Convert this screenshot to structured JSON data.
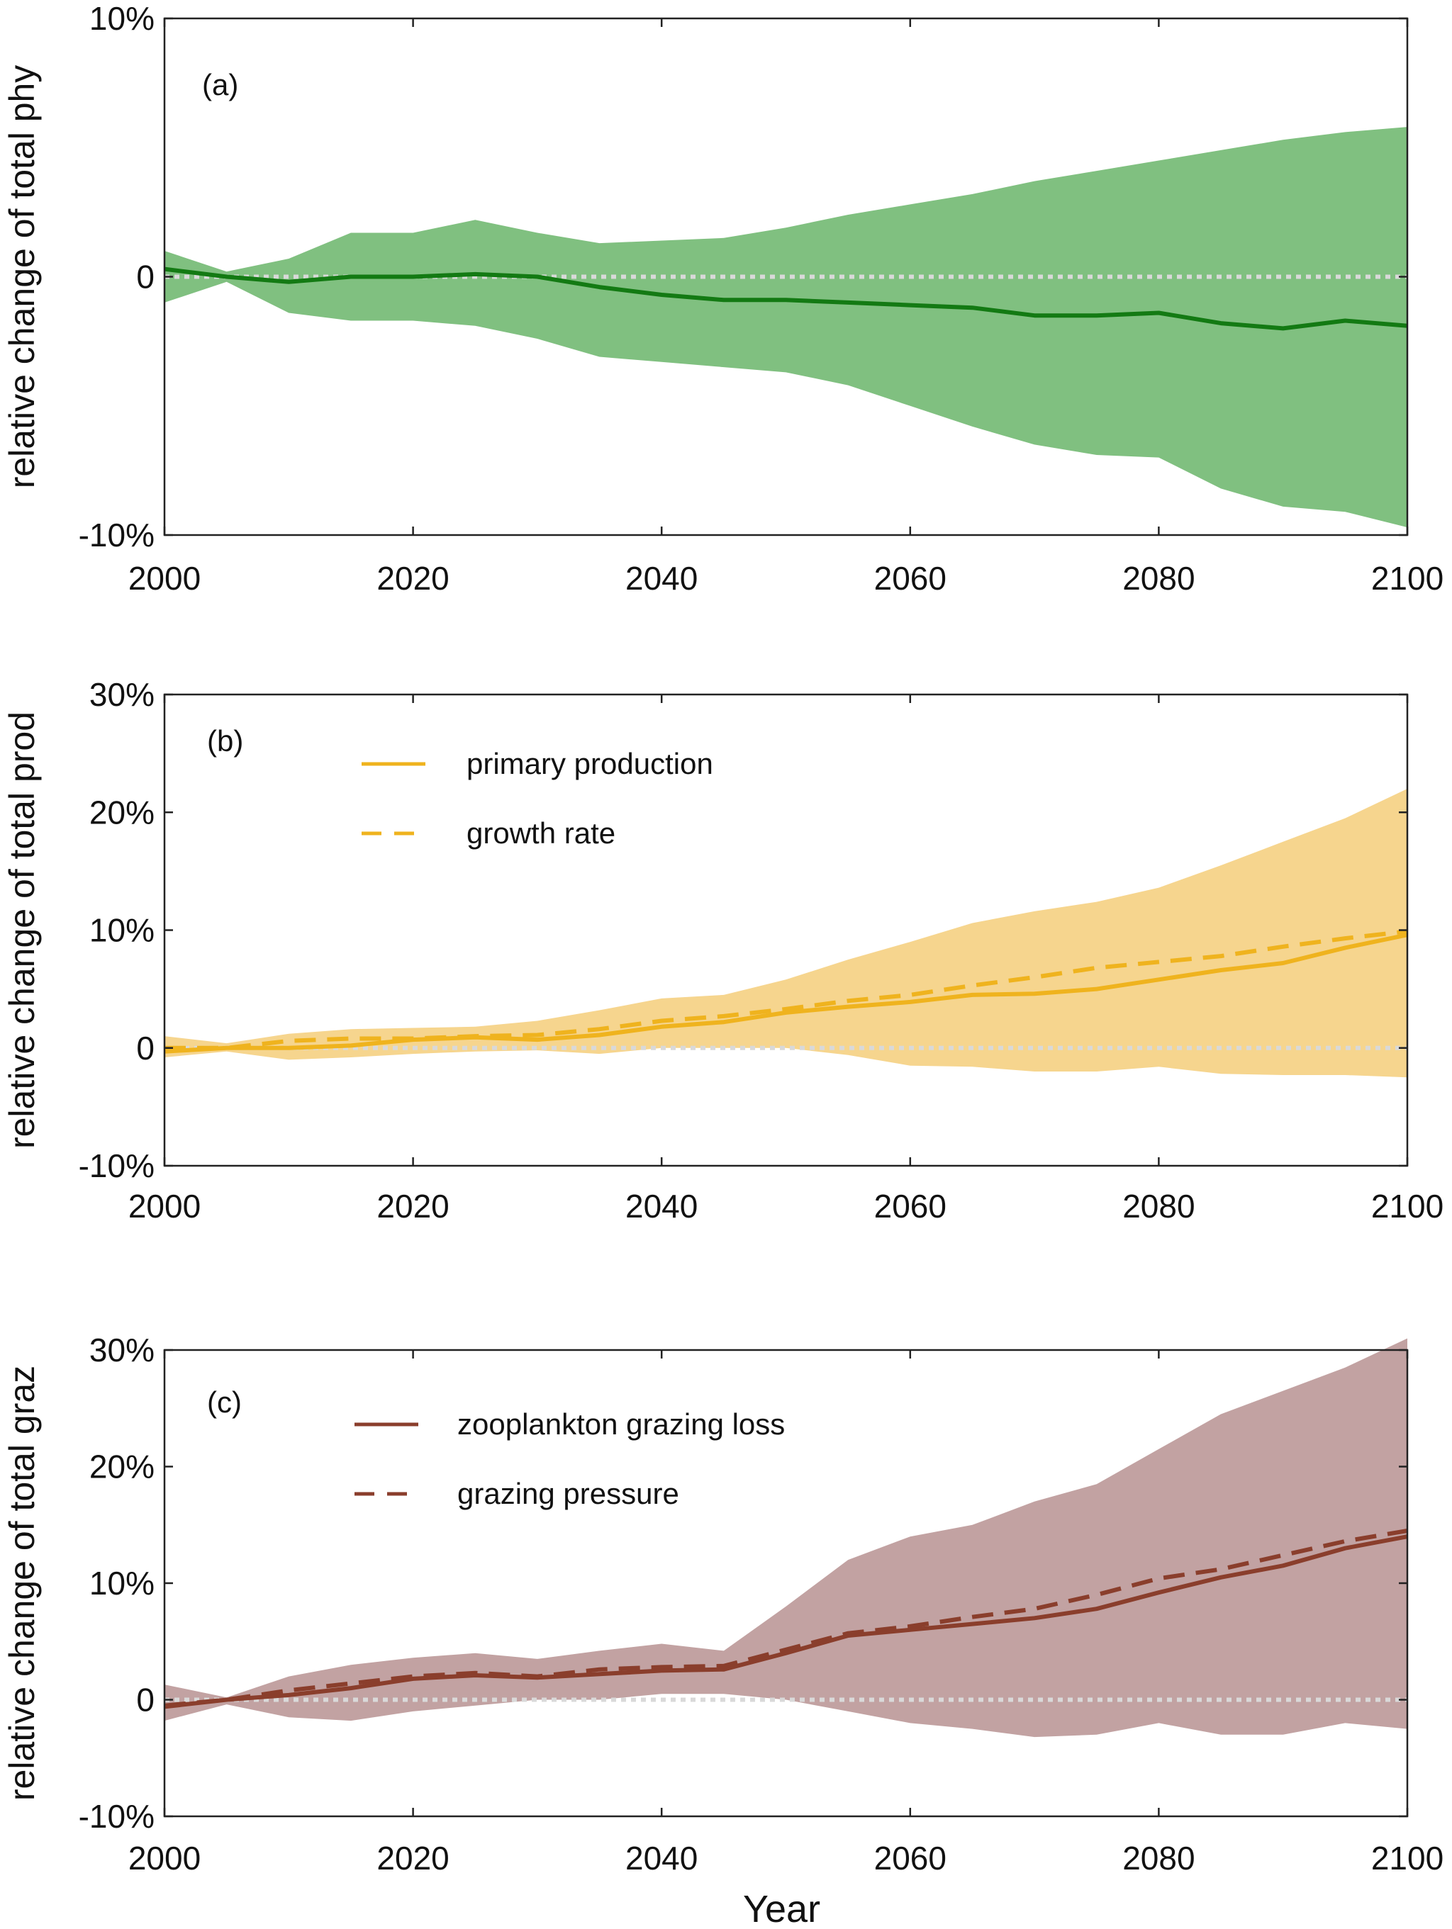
{
  "chart_data": [
    {
      "type": "area",
      "panel_label": "(a)",
      "ylabel": "relative change of total phy",
      "xlabel": "",
      "xlim": [
        2000,
        2100
      ],
      "ylim": [
        -10,
        10
      ],
      "x_ticks": [
        "2000",
        "2020",
        "2040",
        "2060",
        "2080",
        "2100"
      ],
      "y_ticks": [
        {
          "value": 10,
          "label": "10%"
        },
        {
          "value": 0,
          "label": "0"
        },
        {
          "value": -10,
          "label": "-10%"
        }
      ],
      "zero_line": true,
      "grid": false,
      "colors": {
        "band": "#80c080",
        "line": "#137a13"
      },
      "band": {
        "x": [
          2000,
          2005,
          2010,
          2015,
          2020,
          2025,
          2030,
          2035,
          2040,
          2045,
          2050,
          2055,
          2060,
          2065,
          2070,
          2075,
          2080,
          2085,
          2090,
          2095,
          2100
        ],
        "upper": [
          1.0,
          0.2,
          0.7,
          1.7,
          1.7,
          2.2,
          1.7,
          1.3,
          1.4,
          1.5,
          1.9,
          2.4,
          2.8,
          3.2,
          3.7,
          4.1,
          4.5,
          4.9,
          5.3,
          5.6,
          5.8
        ],
        "lower": [
          -1.0,
          -0.2,
          -1.4,
          -1.7,
          -1.7,
          -1.9,
          -2.4,
          -3.1,
          -3.3,
          -3.5,
          -3.7,
          -4.2,
          -5.0,
          -5.8,
          -6.5,
          -6.9,
          -7.0,
          -8.2,
          -8.9,
          -9.1,
          -9.7
        ]
      },
      "series": [
        {
          "style": "solid",
          "x": [
            2000,
            2005,
            2010,
            2015,
            2020,
            2025,
            2030,
            2035,
            2040,
            2045,
            2050,
            2055,
            2060,
            2065,
            2070,
            2075,
            2080,
            2085,
            2090,
            2095,
            2100
          ],
          "values": [
            0.3,
            0.0,
            -0.2,
            0.0,
            0.0,
            0.1,
            0.0,
            -0.4,
            -0.7,
            -0.9,
            -0.9,
            -1.0,
            -1.1,
            -1.2,
            -1.5,
            -1.5,
            -1.4,
            -1.8,
            -2.0,
            -1.7,
            -1.9
          ]
        }
      ]
    },
    {
      "type": "line",
      "panel_label": "(b)",
      "ylabel": "relative change of total prod",
      "xlabel": "",
      "xlim": [
        2000,
        2100
      ],
      "ylim": [
        -10,
        30
      ],
      "x_ticks": [
        "2000",
        "2020",
        "2040",
        "2060",
        "2080",
        "2100"
      ],
      "y_ticks": [
        {
          "value": 30,
          "label": "30%"
        },
        {
          "value": 20,
          "label": "20%"
        },
        {
          "value": 10,
          "label": "10%"
        },
        {
          "value": 0,
          "label": "0"
        },
        {
          "value": -10,
          "label": "-10%"
        }
      ],
      "zero_line": true,
      "grid": false,
      "legend_position": "top-left",
      "colors": {
        "band": "#f6d58e",
        "line": "#efb31e"
      },
      "band": {
        "x": [
          2000,
          2005,
          2010,
          2015,
          2020,
          2025,
          2030,
          2035,
          2040,
          2045,
          2050,
          2055,
          2060,
          2065,
          2070,
          2075,
          2080,
          2085,
          2090,
          2095,
          2100
        ],
        "upper": [
          1.0,
          0.4,
          1.2,
          1.6,
          1.7,
          1.8,
          2.3,
          3.2,
          4.2,
          4.5,
          5.8,
          7.5,
          9.0,
          10.6,
          11.6,
          12.4,
          13.6,
          15.5,
          17.5,
          19.5,
          22.0
        ],
        "lower": [
          -0.8,
          -0.3,
          -1.0,
          -0.8,
          -0.5,
          -0.3,
          -0.2,
          -0.5,
          0.0,
          0.0,
          0.0,
          -0.6,
          -1.5,
          -1.6,
          -2.0,
          -2.0,
          -1.6,
          -2.2,
          -2.3,
          -2.3,
          -2.5
        ]
      },
      "series": [
        {
          "name": "primary production",
          "style": "solid",
          "x": [
            2000,
            2005,
            2010,
            2015,
            2020,
            2025,
            2030,
            2035,
            2040,
            2045,
            2050,
            2055,
            2060,
            2065,
            2070,
            2075,
            2080,
            2085,
            2090,
            2095,
            2100
          ],
          "values": [
            -0.3,
            0.0,
            0.0,
            0.2,
            0.7,
            0.9,
            0.7,
            1.1,
            1.8,
            2.2,
            3.0,
            3.5,
            3.9,
            4.5,
            4.6,
            5.0,
            5.8,
            6.6,
            7.2,
            8.5,
            9.6
          ]
        },
        {
          "name": "growth rate",
          "style": "dashed",
          "x": [
            2000,
            2005,
            2010,
            2015,
            2020,
            2025,
            2030,
            2035,
            2040,
            2045,
            2050,
            2055,
            2060,
            2065,
            2070,
            2075,
            2080,
            2085,
            2090,
            2095,
            2100
          ],
          "values": [
            0.0,
            0.0,
            0.6,
            0.8,
            0.8,
            1.0,
            1.1,
            1.6,
            2.3,
            2.7,
            3.3,
            4.0,
            4.5,
            5.3,
            6.0,
            6.8,
            7.3,
            7.8,
            8.6,
            9.3,
            9.9
          ]
        }
      ]
    },
    {
      "type": "line",
      "panel_label": "(c)",
      "ylabel": "relative change of total graz",
      "xlabel": "Year",
      "xlim": [
        2000,
        2100
      ],
      "ylim": [
        -10,
        30
      ],
      "x_ticks": [
        "2000",
        "2020",
        "2040",
        "2060",
        "2080",
        "2100"
      ],
      "y_ticks": [
        {
          "value": 30,
          "label": "30%"
        },
        {
          "value": 20,
          "label": "20%"
        },
        {
          "value": 10,
          "label": "10%"
        },
        {
          "value": 0,
          "label": "0"
        },
        {
          "value": -10,
          "label": "-10%"
        }
      ],
      "zero_line": true,
      "grid": false,
      "legend_position": "top-left",
      "colors": {
        "band": "#c2a2a2",
        "line": "#8a3e2c"
      },
      "band": {
        "x": [
          2000,
          2005,
          2010,
          2015,
          2020,
          2025,
          2030,
          2035,
          2040,
          2045,
          2050,
          2055,
          2060,
          2065,
          2070,
          2075,
          2080,
          2085,
          2090,
          2095,
          2100
        ],
        "upper": [
          1.3,
          0.2,
          2.0,
          3.0,
          3.6,
          4.0,
          3.5,
          4.2,
          4.8,
          4.2,
          8.0,
          12.0,
          14.0,
          15.0,
          17.0,
          18.5,
          21.5,
          24.5,
          26.5,
          28.5,
          31.0
        ],
        "lower": [
          -1.8,
          -0.4,
          -1.5,
          -1.8,
          -1.0,
          -0.5,
          0.0,
          0.0,
          0.5,
          0.5,
          0.0,
          -1.0,
          -2.0,
          -2.5,
          -3.2,
          -3.0,
          -2.0,
          -3.0,
          -3.0,
          -2.0,
          -2.5
        ]
      },
      "series": [
        {
          "name": "zooplankton grazing loss",
          "style": "solid",
          "x": [
            2000,
            2005,
            2010,
            2015,
            2020,
            2025,
            2030,
            2035,
            2040,
            2045,
            2050,
            2055,
            2060,
            2065,
            2070,
            2075,
            2080,
            2085,
            2090,
            2095,
            2100
          ],
          "values": [
            -0.6,
            0.0,
            0.4,
            1.0,
            1.8,
            2.1,
            1.9,
            2.2,
            2.5,
            2.6,
            4.0,
            5.5,
            6.0,
            6.5,
            7.0,
            7.8,
            9.2,
            10.5,
            11.5,
            13.0,
            14.0
          ]
        },
        {
          "name": "grazing pressure",
          "style": "dashed",
          "x": [
            2000,
            2005,
            2010,
            2015,
            2020,
            2025,
            2030,
            2035,
            2040,
            2045,
            2050,
            2055,
            2060,
            2065,
            2070,
            2075,
            2080,
            2085,
            2090,
            2095,
            2100
          ],
          "values": [
            -0.5,
            0.0,
            0.8,
            1.4,
            2.0,
            2.3,
            2.0,
            2.6,
            2.8,
            2.9,
            4.3,
            5.7,
            6.3,
            7.1,
            7.8,
            9.0,
            10.4,
            11.2,
            12.4,
            13.6,
            14.5
          ]
        }
      ]
    }
  ]
}
